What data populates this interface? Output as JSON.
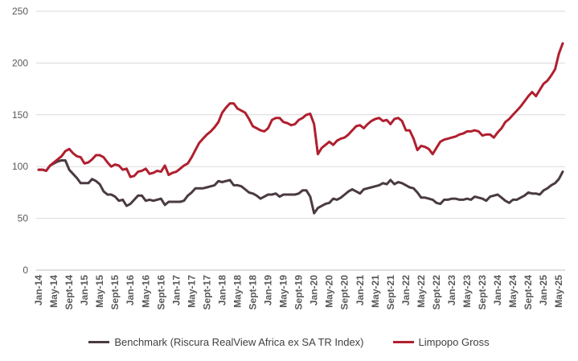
{
  "chart_data": {
    "type": "line",
    "ylim": [
      0,
      250
    ],
    "yticks": [
      0,
      50,
      100,
      150,
      200,
      250
    ],
    "grid": true,
    "legend_position": "bottom",
    "x": [
      "Jan-14",
      "Feb-14",
      "Mar-14",
      "Apr-14",
      "May-14",
      "Jun-14",
      "Jul-14",
      "Aug-14",
      "Sept-14",
      "Oct-14",
      "Nov-14",
      "Dec-14",
      "Jan-15",
      "Feb-15",
      "Mar-15",
      "Apr-15",
      "May-15",
      "Jun-15",
      "Jul-15",
      "Aug-15",
      "Sept-15",
      "Oct-15",
      "Nov-15",
      "Dec-15",
      "Jan-16",
      "Feb-16",
      "Mar-16",
      "Apr-16",
      "May-16",
      "Jun-16",
      "Jul-16",
      "Aug-16",
      "Sept-16",
      "Oct-16",
      "Nov-16",
      "Dec-16",
      "Jan-17",
      "Feb-17",
      "Mar-17",
      "Apr-17",
      "May-17",
      "Jun-17",
      "Jul-17",
      "Aug-17",
      "Sept-17",
      "Oct-17",
      "Nov-17",
      "Dec-17",
      "Jan-18",
      "Feb-18",
      "Mar-18",
      "Apr-18",
      "May-18",
      "Jun-18",
      "Jul-18",
      "Aug-18",
      "Sept-18",
      "Oct-18",
      "Nov-18",
      "Dec-18",
      "Jan-19",
      "Feb-19",
      "Mar-19",
      "Apr-19",
      "May-19",
      "Jun-19",
      "Jul-19",
      "Aug-19",
      "Sept-19",
      "Oct-19",
      "Nov-19",
      "Dec-19",
      "Jan-20",
      "Feb-20",
      "Mar-20",
      "Apr-20",
      "May-20",
      "Jun-20",
      "Jul-20",
      "Aug-20",
      "Sept-20",
      "Oct-20",
      "Nov-20",
      "Dec-20",
      "Jan-21",
      "Feb-21",
      "Mar-21",
      "Apr-21",
      "May-21",
      "Jun-21",
      "Jul-21",
      "Aug-21",
      "Sept-21",
      "Oct-21",
      "Nov-21",
      "Dec-21",
      "Jan-22",
      "Feb-22",
      "Mar-22",
      "Apr-22",
      "May-22",
      "Jun-22",
      "Jul-22",
      "Aug-22",
      "Sept-22",
      "Oct-22",
      "Nov-22",
      "Dec-22",
      "Jan-23",
      "Feb-23",
      "Mar-23",
      "Apr-23",
      "May-23",
      "Jun-23",
      "Jul-23",
      "Aug-23",
      "Sept-23",
      "Oct-23",
      "Nov-23",
      "Dec-23",
      "Jan-24",
      "Feb-24",
      "Mar-24",
      "Apr-24",
      "May-24",
      "Jun-24",
      "Jul-24",
      "Aug-24",
      "Sept-24",
      "Oct-24",
      "Nov-24",
      "Dec-24",
      "Jan-25",
      "Feb-25",
      "Mar-25",
      "Apr-25",
      "May-25",
      "Jun-25"
    ],
    "xtick_labels": [
      "Jan-14",
      "May-14",
      "Sept-14",
      "Jan-15",
      "May-15",
      "Sept-15",
      "Jan-16",
      "May-16",
      "Sept-16",
      "Jan-17",
      "May-17",
      "Sept-17",
      "Jan-18",
      "May-18",
      "Sept-18",
      "Jan-19",
      "May-19",
      "Sept-19",
      "Jan-20",
      "May-20",
      "Sept-20",
      "Jan-21",
      "May-21",
      "Sept-21",
      "Jan-22",
      "May-22",
      "Sept-22",
      "Jan-23",
      "May-23",
      "Sept-23",
      "Jan-24",
      "May-24",
      "Sept-24",
      "Jan-25",
      "May-25"
    ],
    "series": [
      {
        "name": "Benchmark (Riscura RealView Africa ex SA TR Index)",
        "color": "#4a3a42",
        "values": [
          97,
          97,
          96,
          101,
          103,
          105,
          106,
          106,
          97,
          93,
          89,
          84,
          84,
          84,
          88,
          86,
          83,
          76,
          73,
          73,
          71,
          67,
          68,
          62,
          64,
          68,
          72,
          72,
          67,
          68,
          67,
          68,
          69,
          63,
          66,
          66,
          66,
          66,
          67,
          72,
          75,
          79,
          79,
          79,
          80,
          81,
          82,
          86,
          85,
          86,
          87,
          82,
          82,
          81,
          78,
          75,
          74,
          72,
          69,
          71,
          73,
          73,
          74,
          71,
          73,
          73,
          73,
          73,
          74,
          77,
          77,
          71,
          55,
          60,
          62,
          64,
          65,
          69,
          68,
          70,
          73,
          76,
          78,
          76,
          74,
          78,
          79,
          80,
          81,
          82,
          84,
          83,
          87,
          83,
          85,
          84,
          82,
          80,
          79,
          75,
          70,
          70,
          69,
          68,
          65,
          64,
          68,
          68,
          69,
          69,
          68,
          68,
          69,
          68,
          71,
          70,
          69,
          67,
          71,
          72,
          73,
          70,
          67,
          65,
          68,
          68,
          70,
          72,
          75,
          74,
          74,
          73,
          77,
          79,
          82,
          84,
          88,
          95
        ]
      },
      {
        "name": "Limpopo Gross",
        "color": "#b01f2e",
        "values": [
          97,
          97,
          96,
          101,
          104,
          107,
          110,
          115,
          117,
          113,
          110,
          109,
          103,
          104,
          107,
          111,
          111,
          109,
          104,
          100,
          102,
          101,
          97,
          98,
          90,
          91,
          95,
          96,
          98,
          93,
          94,
          96,
          95,
          101,
          92,
          94,
          95,
          98,
          101,
          103,
          109,
          116,
          123,
          127,
          131,
          134,
          138,
          143,
          152,
          157,
          161,
          161,
          156,
          154,
          152,
          146,
          139,
          137,
          135,
          134,
          137,
          145,
          147,
          147,
          143,
          142,
          140,
          141,
          145,
          147,
          150,
          151,
          141,
          112,
          118,
          121,
          124,
          121,
          125,
          127,
          128,
          131,
          135,
          139,
          140,
          137,
          141,
          144,
          146,
          147,
          144,
          145,
          141,
          146,
          147,
          144,
          135,
          135,
          127,
          116,
          120,
          119,
          117,
          112,
          118,
          124,
          126,
          127,
          128,
          129,
          131,
          132,
          134,
          134,
          135,
          134,
          130,
          131,
          131,
          128,
          133,
          137,
          143,
          146,
          150,
          154,
          158,
          163,
          168,
          172,
          168,
          174,
          180,
          183,
          188,
          194,
          209,
          219
        ]
      }
    ]
  },
  "legend": {
    "item1_label": "Benchmark (Riscura RealView Africa ex SA TR Index)",
    "item2_label": "Limpopo Gross"
  }
}
